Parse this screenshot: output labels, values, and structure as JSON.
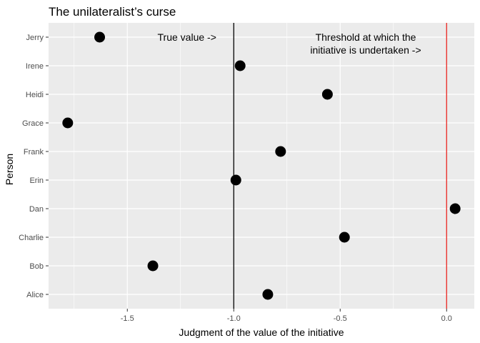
{
  "chart_data": {
    "type": "scatter",
    "title": "The unilateralist’s curse",
    "xlabel": "Judgment of the value of the initiative",
    "ylabel": "Person",
    "xlim": [
      -1.87,
      0.13
    ],
    "x_ticks": [
      -1.5,
      -1.0,
      -0.5,
      0.0
    ],
    "x_tick_labels": [
      "-1.5",
      "-1.0",
      "-0.5",
      "0.0"
    ],
    "categories": [
      "Alice",
      "Bob",
      "Charlie",
      "Dan",
      "Erin",
      "Frank",
      "Grace",
      "Heidi",
      "Irene",
      "Jerry"
    ],
    "values": [
      -0.84,
      -1.38,
      -0.48,
      0.04,
      -0.99,
      -0.78,
      -1.78,
      -0.56,
      -0.97,
      -1.63
    ],
    "grid": true,
    "vlines": [
      {
        "x": -1.0,
        "color": "#000000"
      },
      {
        "x": 0.0,
        "color": "#e8231e"
      }
    ],
    "annotations": [
      {
        "lines": [
          "True value ->"
        ],
        "x": -1.22,
        "y_category": "Jerry"
      },
      {
        "lines": [
          "Threshold at which the",
          "initiative is undertaken ->"
        ],
        "x": -0.38,
        "y_category": "Jerry"
      }
    ],
    "colors": {
      "panel": "#ebebeb",
      "grid": "#ffffff",
      "point": "#000000"
    }
  }
}
